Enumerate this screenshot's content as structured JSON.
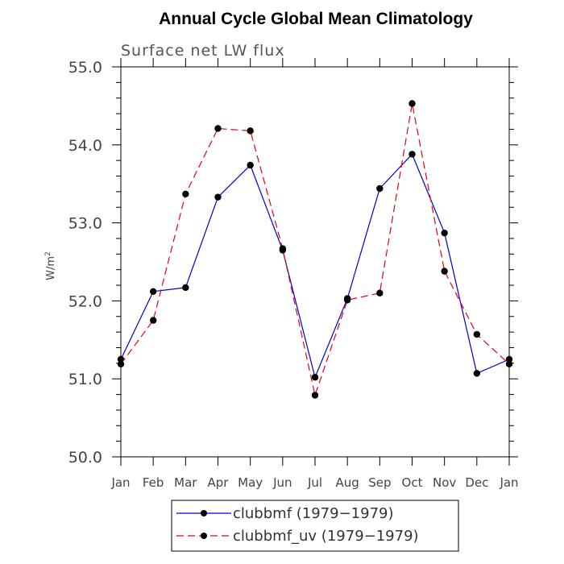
{
  "chart_data": {
    "type": "line",
    "title": "Annual Cycle Global Mean Climatology",
    "subtitle": "Surface net LW flux",
    "ylabel": "W/m",
    "ylabel_sup": "2",
    "categories": [
      "Jan",
      "Feb",
      "Mar",
      "Apr",
      "May",
      "Jun",
      "Jul",
      "Aug",
      "Sep",
      "Oct",
      "Nov",
      "Dec",
      "Jan"
    ],
    "ylim": [
      50.0,
      55.0
    ],
    "yticks": [
      "50.0",
      "51.0",
      "52.0",
      "53.0",
      "54.0",
      "55.0"
    ],
    "series": [
      {
        "name": "clubbmf (1979−1979)",
        "color": "#0000cc",
        "dash": "solid",
        "values": [
          51.25,
          52.12,
          52.17,
          53.33,
          53.74,
          52.65,
          51.02,
          52.03,
          53.44,
          53.88,
          52.87,
          51.07,
          51.25
        ]
      },
      {
        "name": "clubbmf_uv (1979−1979)",
        "color": "#e8000b",
        "dash": "dashed",
        "values": [
          51.19,
          51.75,
          53.37,
          54.21,
          54.18,
          52.67,
          50.79,
          52.01,
          52.1,
          54.53,
          52.38,
          51.57,
          51.19
        ]
      }
    ]
  }
}
